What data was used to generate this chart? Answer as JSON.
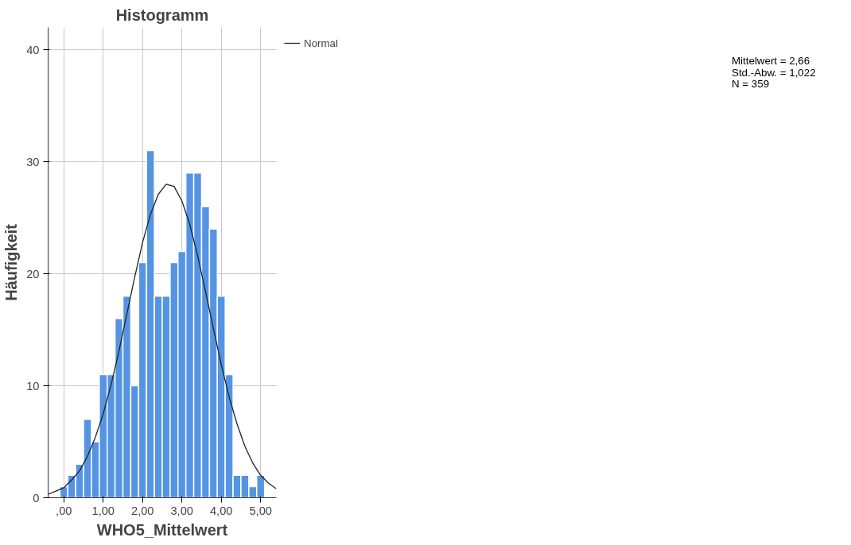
{
  "chart_data": {
    "type": "histogram",
    "title": "Histogramm",
    "xlabel": "WHO5_Mittelwert",
    "ylabel": "Häufigkeit",
    "bins": [
      -0.1,
      0.1,
      0.3,
      0.5,
      0.7,
      0.9,
      1.1,
      1.3,
      1.5,
      1.7,
      1.9,
      2.1,
      2.3,
      2.5,
      2.7,
      2.9,
      3.1,
      3.3,
      3.5,
      3.7,
      3.9,
      4.1,
      4.3,
      4.5,
      4.7,
      4.9,
      5.1
    ],
    "values": [
      1,
      2,
      3,
      7,
      5,
      11,
      11,
      16,
      18,
      10,
      21,
      31,
      18,
      18,
      21,
      22,
      29,
      29,
      26,
      24,
      18,
      11,
      2,
      2,
      1,
      2
    ],
    "color": "#5594e3",
    "series": [
      {
        "name": "Normal",
        "type": "line",
        "color": "#222222",
        "x": [
          -0.4,
          -0.2,
          0,
          0.2,
          0.4,
          0.6,
          0.8,
          1.0,
          1.2,
          1.4,
          1.6,
          1.8,
          2.0,
          2.2,
          2.4,
          2.6,
          2.8,
          3.0,
          3.2,
          3.4,
          3.6,
          3.8,
          4.0,
          4.2,
          4.4,
          4.6,
          4.8,
          5.0,
          5.2,
          5.4
        ],
        "values": [
          0.3,
          0.6,
          0.9,
          1.6,
          2.4,
          3.7,
          5.4,
          7.5,
          10.1,
          13.1,
          16.4,
          19.7,
          22.8,
          25.3,
          27.1,
          28.0,
          27.8,
          26.5,
          24.4,
          21.6,
          18.4,
          15.1,
          11.9,
          9.0,
          6.6,
          4.6,
          3.1,
          2.0,
          1.3,
          0.8
        ]
      }
    ],
    "xlim": [
      -0.4,
      5.4
    ],
    "ylim": [
      0,
      42
    ],
    "xticks": [
      {
        "value": 0,
        "label": ",00"
      },
      {
        "value": 1,
        "label": "1,00"
      },
      {
        "value": 2,
        "label": "2,00"
      },
      {
        "value": 3,
        "label": "3,00"
      },
      {
        "value": 4,
        "label": "4,00"
      },
      {
        "value": 5,
        "label": "5,00"
      }
    ],
    "yticks": [
      0,
      10,
      20,
      30,
      40
    ],
    "grid": true,
    "legend": "top right",
    "annotations": [
      "Mittelwert = 2,66",
      "Std.-Abw. = 1,022",
      "N = 359"
    ]
  }
}
